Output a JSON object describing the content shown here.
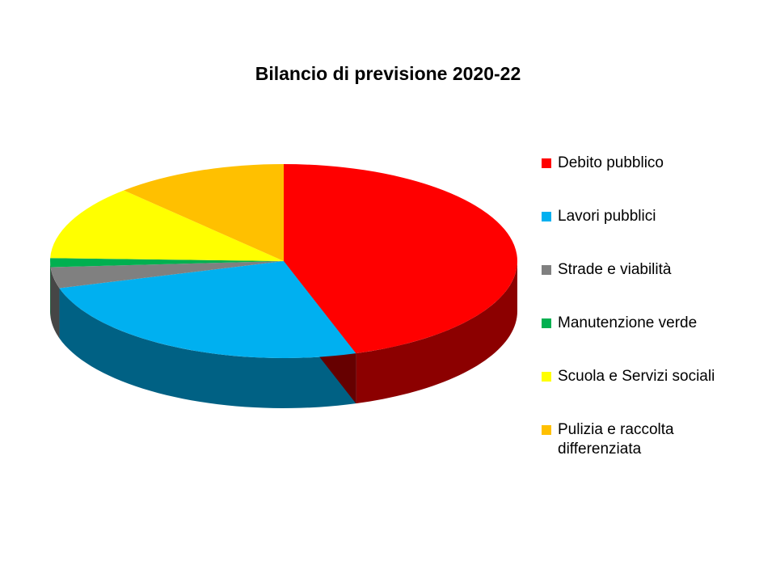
{
  "chart_data": {
    "type": "pie3d",
    "title": "Bilancio di previsione 2020-22",
    "categories": [
      "Debito pubblico",
      "Lavori pubblici",
      "Strade e viabilità",
      "Manutenzione verde",
      "Scuola e Servizi sociali",
      "Pulizia e raccolta differenziata"
    ],
    "values": [
      45,
      25.5,
      3.5,
      1.5,
      12.5,
      12
    ],
    "colors": [
      "#ff0000",
      "#00b0f0",
      "#808080",
      "#00b050",
      "#ffff00",
      "#ffc000"
    ],
    "legend": "right"
  }
}
